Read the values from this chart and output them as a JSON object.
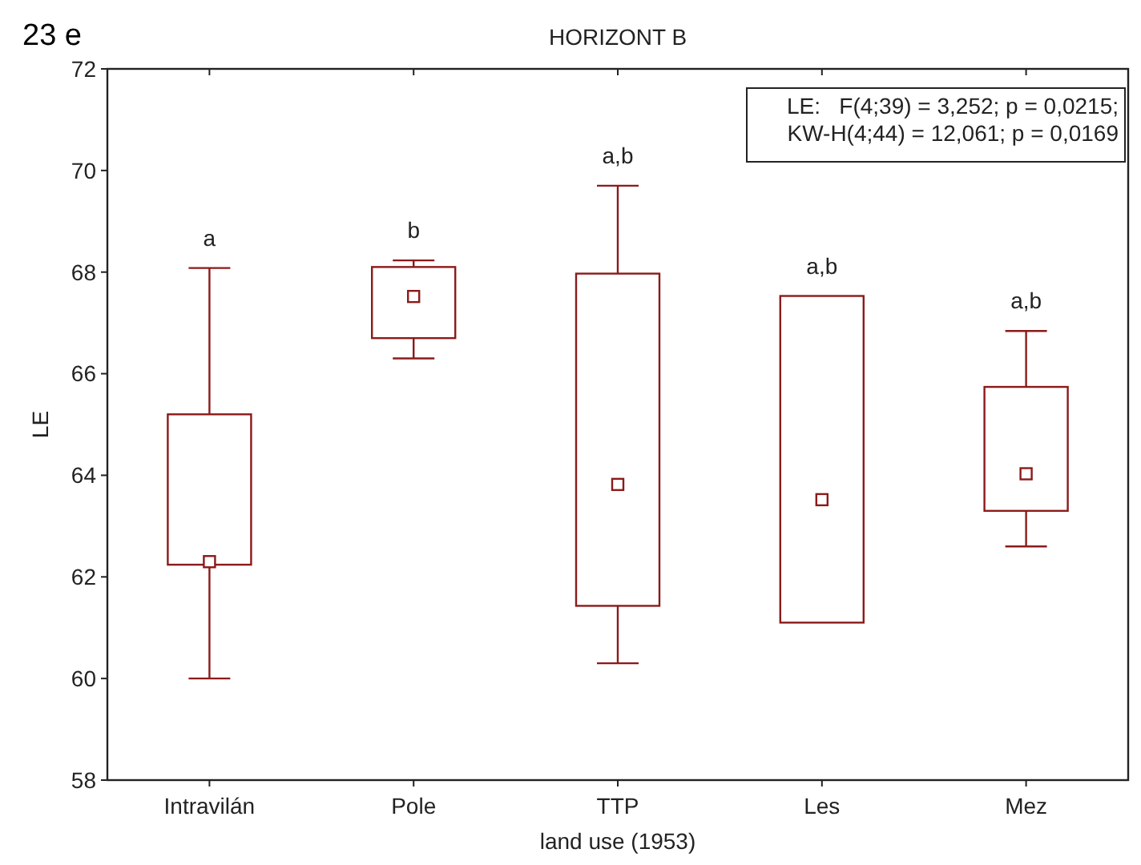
{
  "chart_data": {
    "type": "box",
    "title": "HORIZONT B",
    "xlabel": "land use (1953)",
    "ylabel": "LE",
    "categories": [
      "Intravilán",
      "Pole",
      "TTP",
      "Les",
      "Mez"
    ],
    "color": "#8b1a1a",
    "marker": "square",
    "grid": false,
    "ylim": [
      58,
      72
    ],
    "yticks": [
      58,
      60,
      62,
      64,
      66,
      68,
      70,
      72
    ],
    "boxes": [
      {
        "low": 60.0,
        "q1": 62.24,
        "median": 62.3,
        "q3": 65.2,
        "high": 68.08
      },
      {
        "low": 66.3,
        "q1": 66.7,
        "median": 67.52,
        "q3": 68.1,
        "high": 68.23
      },
      {
        "low": 60.3,
        "q1": 61.43,
        "median": 63.82,
        "q3": 67.97,
        "high": 69.7
      },
      {
        "low": 61.1,
        "q1": 61.1,
        "median": 63.52,
        "q3": 67.53,
        "high": 67.53
      },
      {
        "low": 62.6,
        "q1": 63.3,
        "median": 64.03,
        "q3": 65.74,
        "high": 66.84
      }
    ],
    "annotations": [
      "a",
      "b",
      "a,b",
      "a,b",
      "a,b",
      "23 e",
      "LE:   F(4;39) = 3,252; p = 0,0215;",
      "KW-H(4;44) = 12,061; p = 0,0169"
    ]
  }
}
